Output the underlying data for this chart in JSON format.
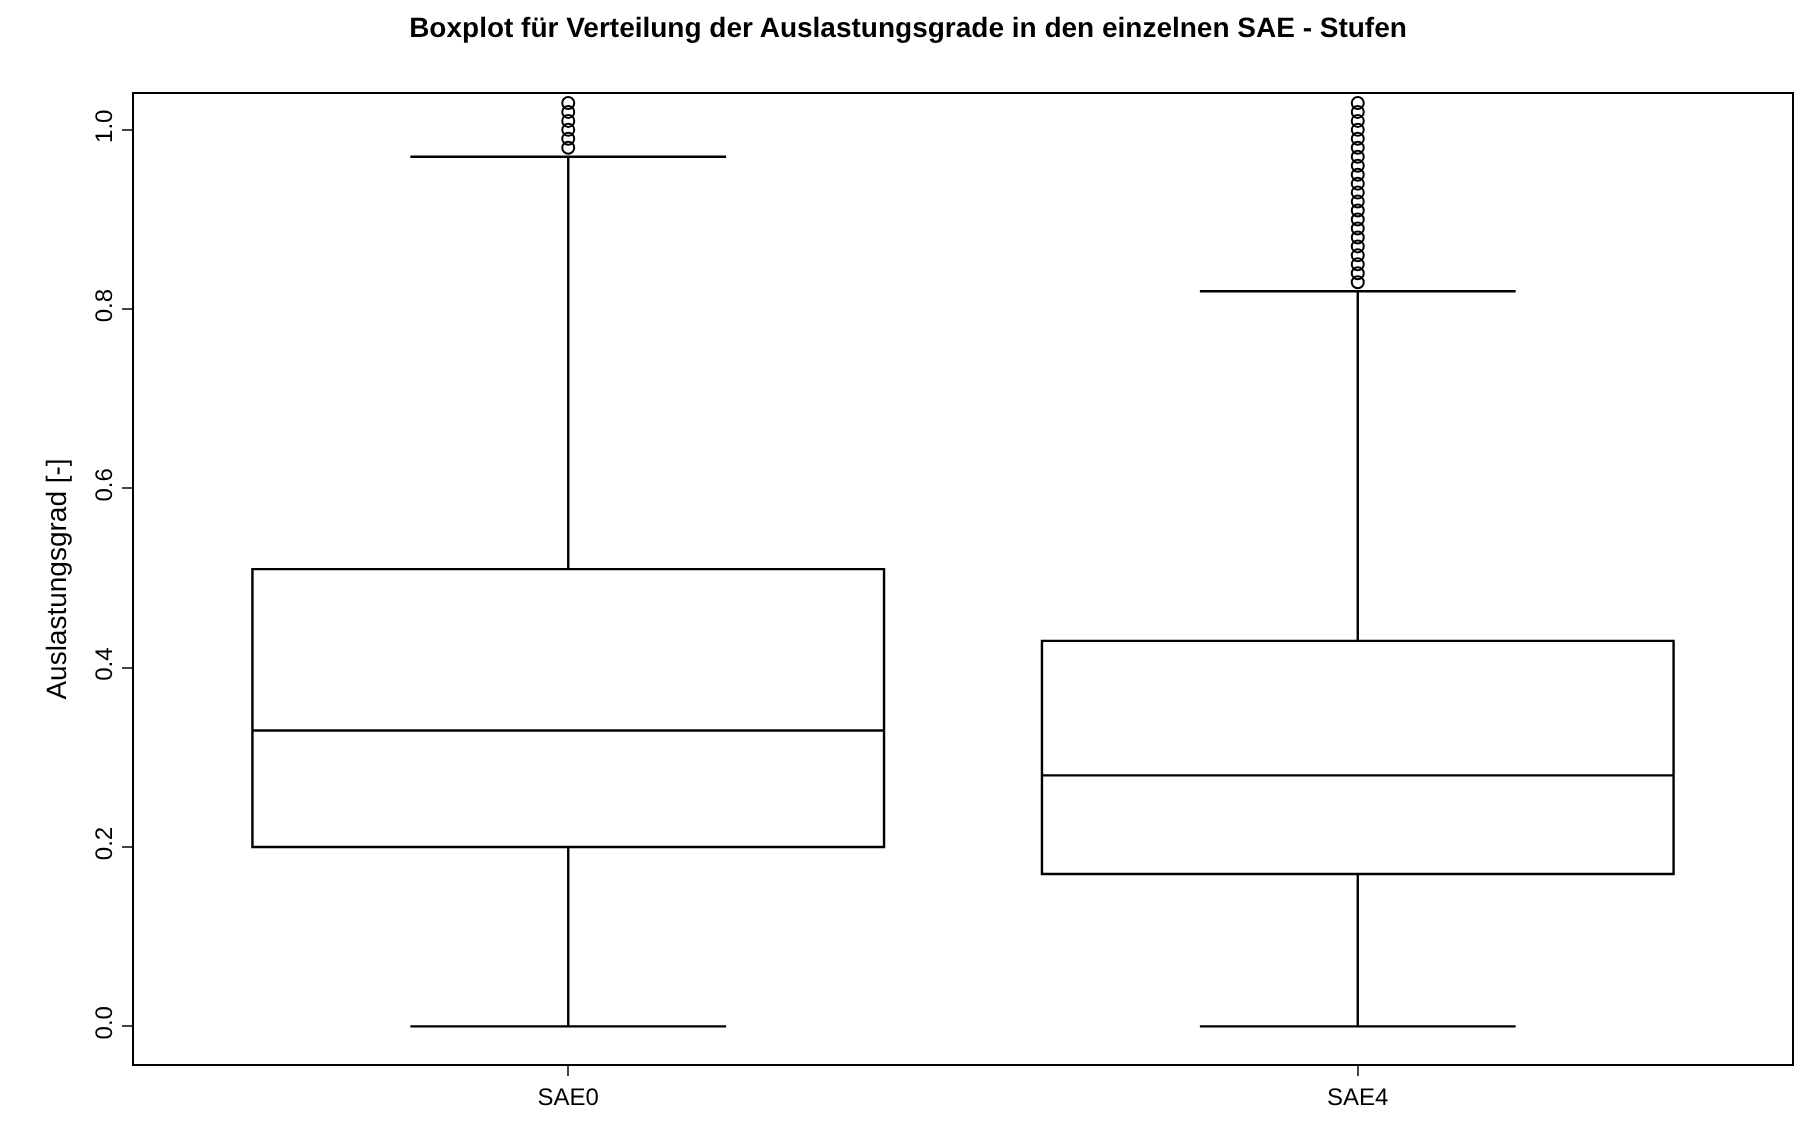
{
  "chart_data": {
    "type": "box",
    "title": "Boxplot für Verteilung der Auslastungsgrade in den einzelnen SAE - Stufen",
    "ylabel": "Auslastungsgrad [-]",
    "categories": [
      "SAE0",
      "SAE4"
    ],
    "boxes": [
      {
        "low": 0.0,
        "q1": 0.2,
        "median": 0.33,
        "q3": 0.51,
        "high": 0.97,
        "outliers": [
          0.98,
          0.99,
          1.0,
          1.01,
          1.02,
          1.03
        ]
      },
      {
        "low": 0.0,
        "q1": 0.17,
        "median": 0.28,
        "q3": 0.43,
        "high": 0.82,
        "outliers": [
          0.83,
          0.84,
          0.85,
          0.86,
          0.87,
          0.88,
          0.89,
          0.9,
          0.91,
          0.92,
          0.93,
          0.94,
          0.95,
          0.96,
          0.97,
          0.98,
          0.99,
          1.0,
          1.01,
          1.02,
          1.03
        ]
      }
    ],
    "color": "#000000",
    "ylim": [
      -0.042,
      1.04
    ],
    "yticks": [
      {
        "value": 0,
        "label": "0.0"
      },
      0.2,
      0.4,
      0.6,
      0.8,
      {
        "value": 1,
        "label": "1.0"
      }
    ]
  }
}
